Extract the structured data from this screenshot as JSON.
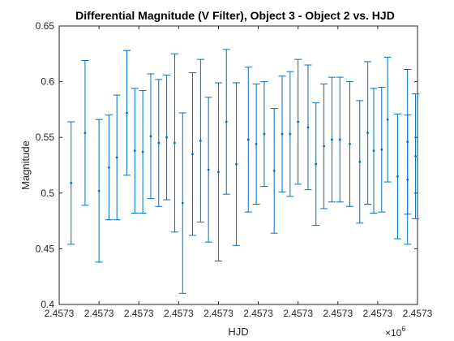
{
  "chart_data": {
    "type": "scatter",
    "title": "Differential Magnitude (V Filter), Object 3 - Object 2 vs. HJD",
    "xlabel": "HJD",
    "ylabel": "Magnitude",
    "x_exponent_label": "×10",
    "x_exponent_power": "6",
    "xlim": [
      2457275.0,
      2457275.9
    ],
    "ylim": [
      0.4,
      0.65
    ],
    "grid": false,
    "legend": "none",
    "colors": {
      "series": "#0072BD",
      "axis": "#262626"
    },
    "x_ticks": [
      2457275.0,
      2457275.1,
      2457275.2,
      2457275.3,
      2457275.4,
      2457275.5,
      2457275.6,
      2457275.7,
      2457275.8,
      2457275.9
    ],
    "x_tick_labels": [
      "2.4573",
      "2.4573",
      "2.4573",
      "2.4573",
      "2.4573",
      "2.4573",
      "2.4573",
      "2.4573",
      "2.4573",
      "2.4573"
    ],
    "y_ticks": [
      0.4,
      0.45,
      0.5,
      0.55,
      0.6,
      0.65
    ],
    "y_tick_labels": [
      "0.4",
      "0.45",
      "0.5",
      "0.55",
      "0.6",
      "0.65"
    ],
    "series": [
      {
        "x": [
          2457275.03,
          2457275.065,
          2457275.1,
          2457275.125,
          2457275.145,
          2457275.17,
          2457275.19,
          2457275.21,
          2457275.23,
          2457275.25,
          2457275.27,
          2457275.29,
          2457275.31,
          2457275.335,
          2457275.355,
          2457275.375,
          2457275.4,
          2457275.42,
          2457275.445,
          2457275.475,
          2457275.495,
          2457275.515,
          2457275.54,
          2457275.56,
          2457275.58,
          2457275.6,
          2457275.625,
          2457275.645,
          2457275.665,
          2457275.685,
          2457275.705,
          2457275.73,
          2457275.755,
          2457275.775,
          2457275.79,
          2457275.81,
          2457275.825,
          2457275.85,
          2457275.875
        ],
        "y": [
          0.509,
          0.554,
          0.502,
          0.523,
          0.532,
          0.572,
          0.538,
          0.537,
          0.551,
          0.545,
          0.55,
          0.545,
          0.491,
          0.535,
          0.547,
          0.521,
          0.519,
          0.564,
          0.526,
          0.548,
          0.544,
          0.553,
          0.52,
          0.553,
          0.553,
          0.564,
          0.559,
          0.526,
          0.542,
          0.548,
          0.548,
          0.544,
          0.528,
          0.554,
          0.538,
          0.539,
          0.566,
          0.515,
          0.512
        ],
        "err": [
          0.055,
          0.065,
          0.064,
          0.047,
          0.056,
          0.056,
          0.056,
          0.055,
          0.056,
          0.057,
          0.056,
          0.08,
          0.081,
          0.073,
          0.073,
          0.065,
          0.08,
          0.065,
          0.073,
          0.065,
          0.054,
          0.047,
          0.056,
          0.052,
          0.056,
          0.056,
          0.056,
          0.055,
          0.056,
          0.056,
          0.056,
          0.056,
          0.055,
          0.064,
          0.056,
          0.056,
          0.056,
          0.056,
          0.058
        ]
      }
    ],
    "extra_points": {
      "x": [
        2457275.895,
        2457275.875
      ],
      "y": [
        0.533,
        0.546
      ],
      "err": [
        0.056,
        0.065
      ]
    }
  }
}
